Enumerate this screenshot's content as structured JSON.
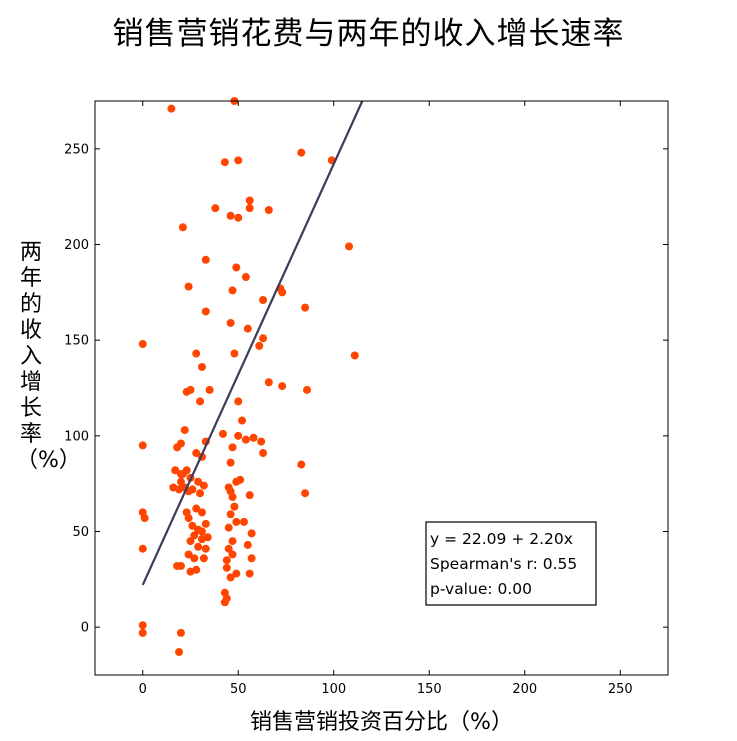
{
  "chart_data": {
    "type": "scatter",
    "title": "销售营销花费与两年的收入增长速率",
    "xlabel": "销售营销投资百分比（%）",
    "ylabel": "两年的收入增长率（%）",
    "xlim": [
      -25,
      275
    ],
    "ylim": [
      -25,
      275
    ],
    "xticks": [
      0,
      50,
      100,
      150,
      200,
      250
    ],
    "yticks": [
      0,
      50,
      100,
      150,
      200,
      250
    ],
    "point_color": "#ff4500",
    "line_color": "#3b3b5a",
    "regression": {
      "intercept": 22.09,
      "slope": 2.2
    },
    "annotation": [
      "y = 22.09 + 2.20x",
      "Spearman's r: 0.55",
      "p-value: 0.00"
    ],
    "points": [
      [
        15,
        271
      ],
      [
        48,
        275
      ],
      [
        43,
        243
      ],
      [
        50,
        244
      ],
      [
        83,
        248
      ],
      [
        99,
        244
      ],
      [
        38,
        219
      ],
      [
        46,
        215
      ],
      [
        50,
        214
      ],
      [
        56,
        223
      ],
      [
        56,
        219
      ],
      [
        66,
        218
      ],
      [
        21,
        209
      ],
      [
        108,
        199
      ],
      [
        33,
        192
      ],
      [
        49,
        188
      ],
      [
        54,
        183
      ],
      [
        24,
        178
      ],
      [
        47,
        176
      ],
      [
        72,
        177
      ],
      [
        73,
        175
      ],
      [
        63,
        171
      ],
      [
        33,
        165
      ],
      [
        85,
        167
      ],
      [
        46,
        159
      ],
      [
        55,
        156
      ],
      [
        63,
        151
      ],
      [
        61,
        147
      ],
      [
        0,
        148
      ],
      [
        28,
        143
      ],
      [
        48,
        143
      ],
      [
        111,
        142
      ],
      [
        31,
        136
      ],
      [
        23,
        123
      ],
      [
        25,
        124
      ],
      [
        35,
        124
      ],
      [
        73,
        126
      ],
      [
        86,
        124
      ],
      [
        66,
        128
      ],
      [
        30,
        118
      ],
      [
        50,
        118
      ],
      [
        52,
        108
      ],
      [
        22,
        103
      ],
      [
        42,
        101
      ],
      [
        50,
        100
      ],
      [
        54,
        98
      ],
      [
        58,
        99
      ],
      [
        62,
        97
      ],
      [
        63,
        91
      ],
      [
        0,
        95
      ],
      [
        18,
        94
      ],
      [
        20,
        96
      ],
      [
        33,
        97
      ],
      [
        28,
        91
      ],
      [
        47,
        94
      ],
      [
        31,
        89
      ],
      [
        46,
        86
      ],
      [
        17,
        82
      ],
      [
        20,
        80
      ],
      [
        21,
        80
      ],
      [
        23,
        82
      ],
      [
        25,
        78
      ],
      [
        20,
        76
      ],
      [
        29,
        76
      ],
      [
        32,
        74
      ],
      [
        45,
        73
      ],
      [
        49,
        76
      ],
      [
        51,
        77
      ],
      [
        46,
        71
      ],
      [
        83,
        85
      ],
      [
        16,
        73
      ],
      [
        19,
        72
      ],
      [
        22,
        73
      ],
      [
        24,
        71
      ],
      [
        26,
        72
      ],
      [
        30,
        70
      ],
      [
        85,
        70
      ],
      [
        47,
        68
      ],
      [
        56,
        69
      ],
      [
        48,
        63
      ],
      [
        28,
        62
      ],
      [
        23,
        60
      ],
      [
        31,
        60
      ],
      [
        46,
        59
      ],
      [
        0,
        60
      ],
      [
        1,
        57
      ],
      [
        24,
        57
      ],
      [
        26,
        53
      ],
      [
        29,
        51
      ],
      [
        33,
        54
      ],
      [
        45,
        52
      ],
      [
        49,
        55
      ],
      [
        53,
        55
      ],
      [
        31,
        50
      ],
      [
        27,
        48
      ],
      [
        34,
        47
      ],
      [
        25,
        45
      ],
      [
        31,
        46
      ],
      [
        47,
        45
      ],
      [
        57,
        49
      ],
      [
        0,
        41
      ],
      [
        29,
        42
      ],
      [
        33,
        41
      ],
      [
        45,
        41
      ],
      [
        47,
        38
      ],
      [
        55,
        43
      ],
      [
        24,
        38
      ],
      [
        27,
        36
      ],
      [
        32,
        36
      ],
      [
        44,
        35
      ],
      [
        57,
        36
      ],
      [
        18,
        32
      ],
      [
        20,
        32
      ],
      [
        25,
        29
      ],
      [
        28,
        30
      ],
      [
        44,
        31
      ],
      [
        49,
        28
      ],
      [
        46,
        26
      ],
      [
        56,
        28
      ],
      [
        43,
        18
      ],
      [
        44,
        15
      ],
      [
        43,
        13
      ],
      [
        0,
        1
      ],
      [
        0,
        -3
      ],
      [
        20,
        -3
      ],
      [
        19,
        -13
      ]
    ]
  }
}
